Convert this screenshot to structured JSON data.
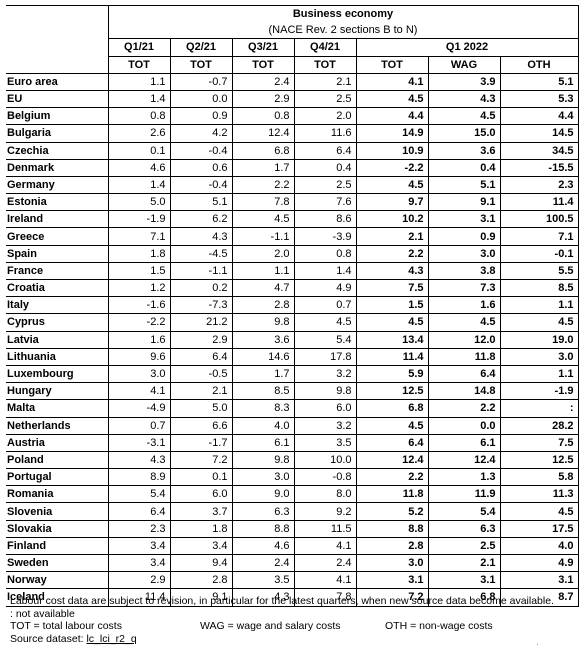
{
  "header": {
    "title": "Business economy",
    "subtitle": "(NACE Rev. 2 sections B to N)",
    "quarters": [
      "Q1/21",
      "Q2/21",
      "Q3/21",
      "Q4/21"
    ],
    "q1_2022": "Q1 2022",
    "sub_cols": [
      "TOT",
      "TOT",
      "TOT",
      "TOT",
      "TOT",
      "WAG",
      "OTH"
    ]
  },
  "rows": [
    {
      "name": "Euro area",
      "v": [
        "1.1",
        "-0.7",
        "2.4",
        "2.1",
        "4.1",
        "3.9",
        "5.1"
      ]
    },
    {
      "name": "EU",
      "v": [
        "1.4",
        "0.0",
        "2.9",
        "2.5",
        "4.5",
        "4.3",
        "5.3"
      ]
    },
    {
      "name": "Belgium",
      "v": [
        "0.8",
        "0.9",
        "0.8",
        "2.0",
        "4.4",
        "4.5",
        "4.4"
      ]
    },
    {
      "name": "Bulgaria",
      "v": [
        "2.6",
        "4.2",
        "12.4",
        "11.6",
        "14.9",
        "15.0",
        "14.5"
      ]
    },
    {
      "name": "Czechia",
      "v": [
        "0.1",
        "-0.4",
        "6.8",
        "6.4",
        "10.9",
        "3.6",
        "34.5"
      ]
    },
    {
      "name": "Denmark",
      "v": [
        "4.6",
        "0.6",
        "1.7",
        "0.4",
        "-2.2",
        "0.4",
        "-15.5"
      ]
    },
    {
      "name": "Germany",
      "v": [
        "1.4",
        "-0.4",
        "2.2",
        "2.5",
        "4.5",
        "5.1",
        "2.3"
      ]
    },
    {
      "name": "Estonia",
      "v": [
        "5.0",
        "5.1",
        "7.8",
        "7.6",
        "9.7",
        "9.1",
        "11.4"
      ]
    },
    {
      "name": "Ireland",
      "v": [
        "-1.9",
        "6.2",
        "4.5",
        "8.6",
        "10.2",
        "3.1",
        "100.5"
      ]
    },
    {
      "name": "Greece",
      "v": [
        "7.1",
        "4.3",
        "-1.1",
        "-3.9",
        "2.1",
        "0.9",
        "7.1"
      ]
    },
    {
      "name": "Spain",
      "v": [
        "1.8",
        "-4.5",
        "2.0",
        "0.8",
        "2.2",
        "3.0",
        "-0.1"
      ]
    },
    {
      "name": "France",
      "v": [
        "1.5",
        "-1.1",
        "1.1",
        "1.4",
        "4.3",
        "3.8",
        "5.5"
      ]
    },
    {
      "name": "Croatia",
      "v": [
        "1.2",
        "0.2",
        "4.7",
        "4.9",
        "7.5",
        "7.3",
        "8.5"
      ]
    },
    {
      "name": "Italy",
      "v": [
        "-1.6",
        "-7.3",
        "2.8",
        "0.7",
        "1.5",
        "1.6",
        "1.1"
      ]
    },
    {
      "name": "Cyprus",
      "v": [
        "-2.2",
        "21.2",
        "9.8",
        "4.5",
        "4.5",
        "4.5",
        "4.5"
      ]
    },
    {
      "name": "Latvia",
      "v": [
        "1.6",
        "2.9",
        "3.6",
        "5.4",
        "13.4",
        "12.0",
        "19.0"
      ]
    },
    {
      "name": "Lithuania",
      "v": [
        "9.6",
        "6.4",
        "14.6",
        "17.8",
        "11.4",
        "11.8",
        "3.0"
      ]
    },
    {
      "name": "Luxembourg",
      "v": [
        "3.0",
        "-0.5",
        "1.7",
        "3.2",
        "5.9",
        "6.4",
        "1.1"
      ]
    },
    {
      "name": "Hungary",
      "v": [
        "4.1",
        "2.1",
        "8.5",
        "9.8",
        "12.5",
        "14.8",
        "-1.9"
      ]
    },
    {
      "name": "Malta",
      "v": [
        "-4.9",
        "5.0",
        "8.3",
        "6.0",
        "6.8",
        "2.2",
        ":"
      ]
    },
    {
      "name": "Netherlands",
      "v": [
        "0.7",
        "6.6",
        "4.0",
        "3.2",
        "4.5",
        "0.0",
        "28.2"
      ]
    },
    {
      "name": "Austria",
      "v": [
        "-3.1",
        "-1.7",
        "6.1",
        "3.5",
        "6.4",
        "6.1",
        "7.5"
      ]
    },
    {
      "name": "Poland",
      "v": [
        "4.3",
        "7.2",
        "9.8",
        "10.0",
        "12.4",
        "12.4",
        "12.5"
      ]
    },
    {
      "name": "Portugal",
      "v": [
        "8.9",
        "0.1",
        "3.0",
        "-0.8",
        "2.2",
        "1.3",
        "5.8"
      ]
    },
    {
      "name": "Romania",
      "v": [
        "5.4",
        "6.0",
        "9.0",
        "8.0",
        "11.8",
        "11.9",
        "11.3"
      ]
    },
    {
      "name": "Slovenia",
      "v": [
        "6.4",
        "3.7",
        "6.3",
        "9.2",
        "5.2",
        "5.4",
        "4.5"
      ]
    },
    {
      "name": "Slovakia",
      "v": [
        "2.3",
        "1.8",
        "8.8",
        "11.5",
        "8.8",
        "6.3",
        "17.5"
      ]
    },
    {
      "name": "Finland",
      "v": [
        "3.4",
        "3.4",
        "4.6",
        "4.1",
        "2.8",
        "2.5",
        "4.0"
      ]
    },
    {
      "name": "Sweden",
      "v": [
        "3.4",
        "9.4",
        "2.4",
        "2.4",
        "3.0",
        "2.1",
        "4.9"
      ]
    },
    {
      "name": "Norway",
      "v": [
        "2.9",
        "2.8",
        "3.5",
        "4.1",
        "3.1",
        "3.1",
        "3.1"
      ]
    },
    {
      "name": "Iceland",
      "v": [
        "11.4",
        "9.1",
        "4.3",
        "7.8",
        "7.2",
        "6.8",
        "8.7"
      ]
    }
  ],
  "notes": {
    "revision": "Labour cost data are subject to revision, in particular for the latest quarters, when new source data become available.",
    "not_available": ": not available",
    "tot": "TOT = total labour costs",
    "wag": "WAG = wage and salary costs",
    "oth": "OTH = non-wage costs",
    "source_label": "Source dataset: ",
    "source_link": "lc_lci_r2_q"
  }
}
